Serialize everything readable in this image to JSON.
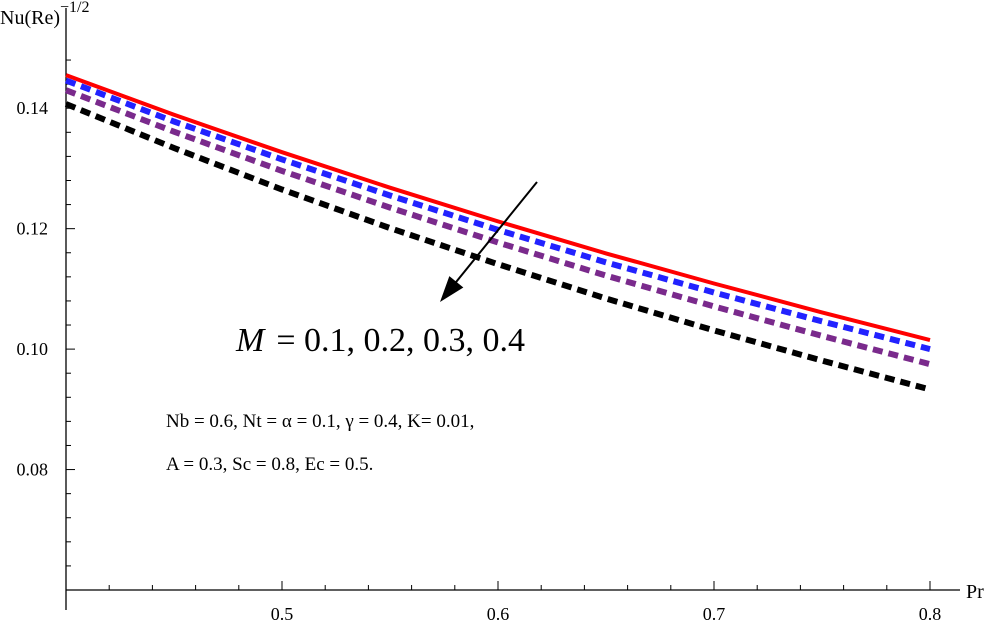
{
  "chart_data": {
    "type": "line",
    "title": "",
    "xlabel": "Pr",
    "ylabel": {
      "base": "Nu(Re)",
      "exponent": "−1/2"
    },
    "xlim": [
      0.4,
      0.8
    ],
    "ylim": [
      0.06,
      0.15
    ],
    "x_ticks": [
      0.5,
      0.6,
      0.7,
      0.8
    ],
    "x_tick_labels": [
      "0.5",
      "0.6",
      "0.7",
      "0.8"
    ],
    "y_ticks": [
      0.08,
      0.1,
      0.12,
      0.14
    ],
    "y_tick_labels": [
      "0.08",
      "0.10",
      "0.12",
      "0.14"
    ],
    "grid": false,
    "legend": "none",
    "series": [
      {
        "color": "#ff0000",
        "style": "solid",
        "x": [
          0.4,
          0.45,
          0.5,
          0.55,
          0.6,
          0.65,
          0.7,
          0.75,
          0.8
        ],
        "y": [
          0.1455,
          0.1389,
          0.1327,
          0.1268,
          0.1212,
          0.1159,
          0.1109,
          0.1061,
          0.1015
        ]
      },
      {
        "color": "#2222ff",
        "style": "dashed",
        "x": [
          0.4,
          0.45,
          0.5,
          0.55,
          0.6,
          0.65,
          0.7,
          0.75,
          0.8
        ],
        "y": [
          0.1446,
          0.1378,
          0.1315,
          0.1255,
          0.1198,
          0.1144,
          0.1094,
          0.1046,
          0.1
        ]
      },
      {
        "color": "#7a2a8c",
        "style": "dashed",
        "x": [
          0.4,
          0.45,
          0.5,
          0.55,
          0.6,
          0.65,
          0.7,
          0.75,
          0.8
        ],
        "y": [
          0.143,
          0.1361,
          0.1296,
          0.1235,
          0.1177,
          0.1122,
          0.1071,
          0.1022,
          0.0975
        ]
      },
      {
        "color": "#000000",
        "style": "dashed",
        "x": [
          0.4,
          0.45,
          0.5,
          0.55,
          0.6,
          0.65,
          0.7,
          0.75,
          0.8
        ],
        "y": [
          0.1407,
          0.1334,
          0.1265,
          0.1201,
          0.1141,
          0.1084,
          0.1031,
          0.0981,
          0.0933
        ]
      }
    ],
    "annotations": {
      "m_symbol": "M",
      "m_values": "= 0.1, 0.2, 0.3, 0.4",
      "params_line1": "Nb = 0.6, Nt = α = 0.1, γ = 0.4, K= 0.01,",
      "params_line2": "A = 0.3, Sc = 0.8, Ec = 0.5.",
      "arrow": {
        "from": [
          0.6,
          0.1225
        ],
        "to": [
          0.54,
          0.1065
        ],
        "color": "#000000"
      }
    }
  }
}
